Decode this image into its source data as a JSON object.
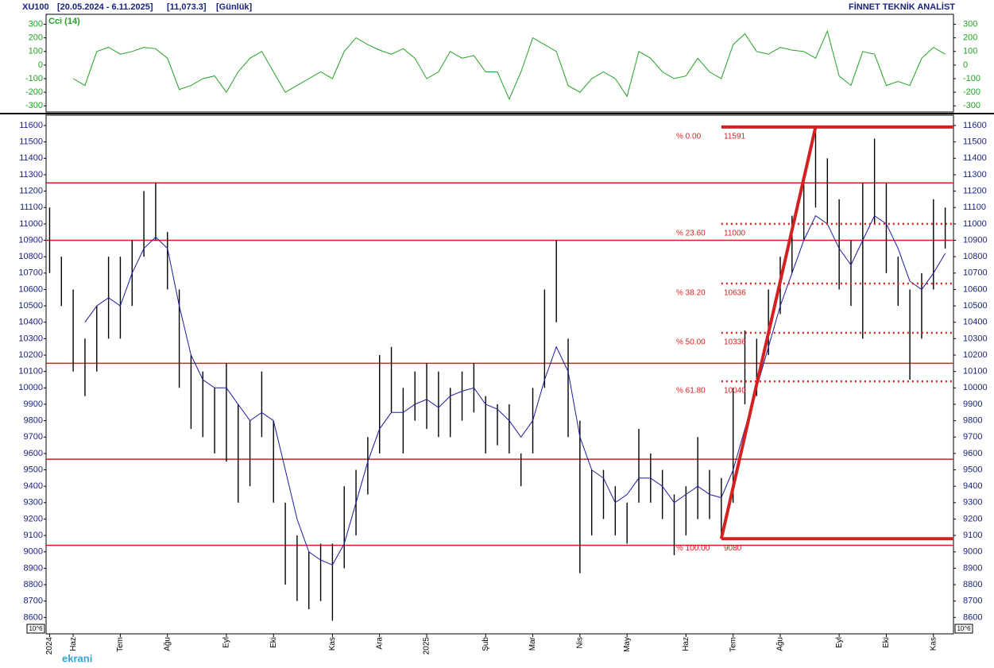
{
  "chart_data": [
    {
      "type": "cci",
      "label": "Cci (14)",
      "color": "#22a022",
      "ylim": [
        -345,
        373
      ],
      "yticks": [
        300,
        200,
        100,
        0,
        -100,
        -200,
        -300
      ],
      "xlim": [
        -0.3,
        76.7
      ],
      "values": [
        null,
        null,
        -100,
        -150,
        100,
        130,
        80,
        100,
        130,
        120,
        50,
        -180,
        -150,
        -100,
        -80,
        -200,
        -50,
        50,
        100,
        -50,
        -200,
        -150,
        -100,
        -50,
        -100,
        100,
        200,
        150,
        110,
        80,
        120,
        50,
        -100,
        -50,
        100,
        50,
        70,
        -50,
        -50,
        -250,
        -50,
        200,
        150,
        100,
        -150,
        -200,
        -100,
        -50,
        -100,
        -230,
        100,
        50,
        -50,
        -100,
        -80,
        50,
        -50,
        -100,
        150,
        230,
        100,
        80,
        130,
        110,
        100,
        50,
        250,
        -80,
        -150,
        100,
        80,
        -150,
        -120,
        -150,
        50,
        130,
        80
      ]
    },
    {
      "type": "hilo",
      "title": "XU100",
      "period": "[20.05.2024 - 6.11.2025]",
      "last": "[11,073.3]",
      "interval": "[Günlük]",
      "source": "FİNNET TEKNİK ANALİST",
      "scale_note": "10^6",
      "watermark": "ekrani",
      "ylim": [
        8500,
        11663
      ],
      "xlim": [
        -0.3,
        76.7
      ],
      "yticks": [
        11600,
        11500,
        11400,
        11300,
        11200,
        11100,
        11000,
        10900,
        10800,
        10700,
        10600,
        10500,
        10400,
        10300,
        10200,
        10100,
        10000,
        9900,
        9800,
        9700,
        9600,
        9500,
        9400,
        9300,
        9200,
        9100,
        9000,
        8900,
        8800,
        8700,
        8600
      ],
      "xticks": [
        {
          "value": 0,
          "label": "2024"
        },
        {
          "value": 2,
          "label": "Haz"
        },
        {
          "value": 6,
          "label": "Tem"
        },
        {
          "value": 10,
          "label": "Ağu"
        },
        {
          "value": 15,
          "label": "Eyl"
        },
        {
          "value": 19,
          "label": "Eki"
        },
        {
          "value": 24,
          "label": "Kas"
        },
        {
          "value": 28,
          "label": "Ara"
        },
        {
          "value": 32,
          "label": "2025"
        },
        {
          "value": 37,
          "label": "Şub"
        },
        {
          "value": 41,
          "label": "Mar"
        },
        {
          "value": 45,
          "label": "Nis"
        },
        {
          "value": 49,
          "label": "May"
        },
        {
          "value": 54,
          "label": "Haz"
        },
        {
          "value": 58,
          "label": "Tem"
        },
        {
          "value": 62,
          "label": "Ağu"
        },
        {
          "value": 67,
          "label": "Eyl"
        },
        {
          "value": 71,
          "label": "Eki"
        },
        {
          "value": 75,
          "label": "Kas"
        }
      ],
      "high": [
        11100,
        10800,
        10600,
        10300,
        10500,
        10800,
        10800,
        10900,
        11200,
        11250,
        10950,
        10600,
        10200,
        10100,
        10000,
        10150,
        9900,
        9800,
        10100,
        9800,
        9300,
        9100,
        9000,
        9050,
        9050,
        9400,
        9500,
        9700,
        10200,
        10250,
        10000,
        10100,
        10150,
        10100,
        10000,
        10100,
        10150,
        9950,
        9900,
        9900,
        9600,
        10000,
        10600,
        10900,
        10300,
        9800,
        9500,
        9500,
        9400,
        9300,
        9750,
        9600,
        9500,
        9350,
        9400,
        9700,
        9500,
        9450,
        10000,
        10350,
        10300,
        10600,
        10800,
        11050,
        11300,
        11591,
        11400,
        11150,
        10900,
        11250,
        11520,
        11250,
        10800,
        10600,
        10700,
        11150,
        11100
      ],
      "low": [
        10700,
        10500,
        10100,
        9950,
        10100,
        10300,
        10300,
        10500,
        10800,
        10900,
        10600,
        10000,
        9750,
        9700,
        9600,
        9550,
        9300,
        9400,
        9700,
        9300,
        8800,
        8700,
        8650,
        8700,
        8580,
        8900,
        9100,
        9350,
        9600,
        9850,
        9600,
        9800,
        9750,
        9700,
        9700,
        9800,
        9850,
        9600,
        9650,
        9600,
        9400,
        9600,
        10000,
        10400,
        9700,
        8870,
        9100,
        9200,
        9100,
        9050,
        9300,
        9300,
        9200,
        8980,
        9100,
        9200,
        9200,
        9080,
        9300,
        9900,
        9950,
        10200,
        10450,
        10700,
        10900,
        11100,
        11000,
        10600,
        10500,
        10300,
        11000,
        10700,
        10500,
        10050,
        10300,
        10600,
        10850
      ],
      "ma": [
        null,
        null,
        null,
        10400,
        10500,
        10550,
        10500,
        10700,
        10850,
        10920,
        10850,
        10500,
        10200,
        10050,
        10000,
        10000,
        9900,
        9800,
        9850,
        9800,
        9500,
        9200,
        9000,
        8950,
        8920,
        9050,
        9300,
        9550,
        9750,
        9850,
        9850,
        9900,
        9930,
        9880,
        9950,
        9980,
        10000,
        9900,
        9870,
        9800,
        9700,
        9800,
        10050,
        10250,
        10100,
        9700,
        9500,
        9450,
        9300,
        9350,
        9450,
        9450,
        9400,
        9300,
        9350,
        9400,
        9350,
        9330,
        9500,
        9750,
        10000,
        10250,
        10500,
        10700,
        10900,
        11050,
        11000,
        10850,
        10750,
        10900,
        11050,
        11000,
        10850,
        10650,
        10600,
        10700,
        10820
      ],
      "bar_color": "#000000",
      "ma_color": "#1a1aa0",
      "level_color": "#d42020",
      "levels": [
        11250,
        10900,
        10150,
        9565,
        9040
      ],
      "fib_start": 57,
      "fib_peak": 65,
      "fib": [
        {
          "label": "% 0.00",
          "value": 11591
        },
        {
          "label": "% 23.60",
          "value": 11000
        },
        {
          "label": "% 38.20",
          "value": 10636
        },
        {
          "label": "% 50.00",
          "value": 10336
        },
        {
          "label": "% 61.80",
          "value": 10040
        },
        {
          "label": "% 100.00",
          "value": 9080
        }
      ]
    }
  ]
}
